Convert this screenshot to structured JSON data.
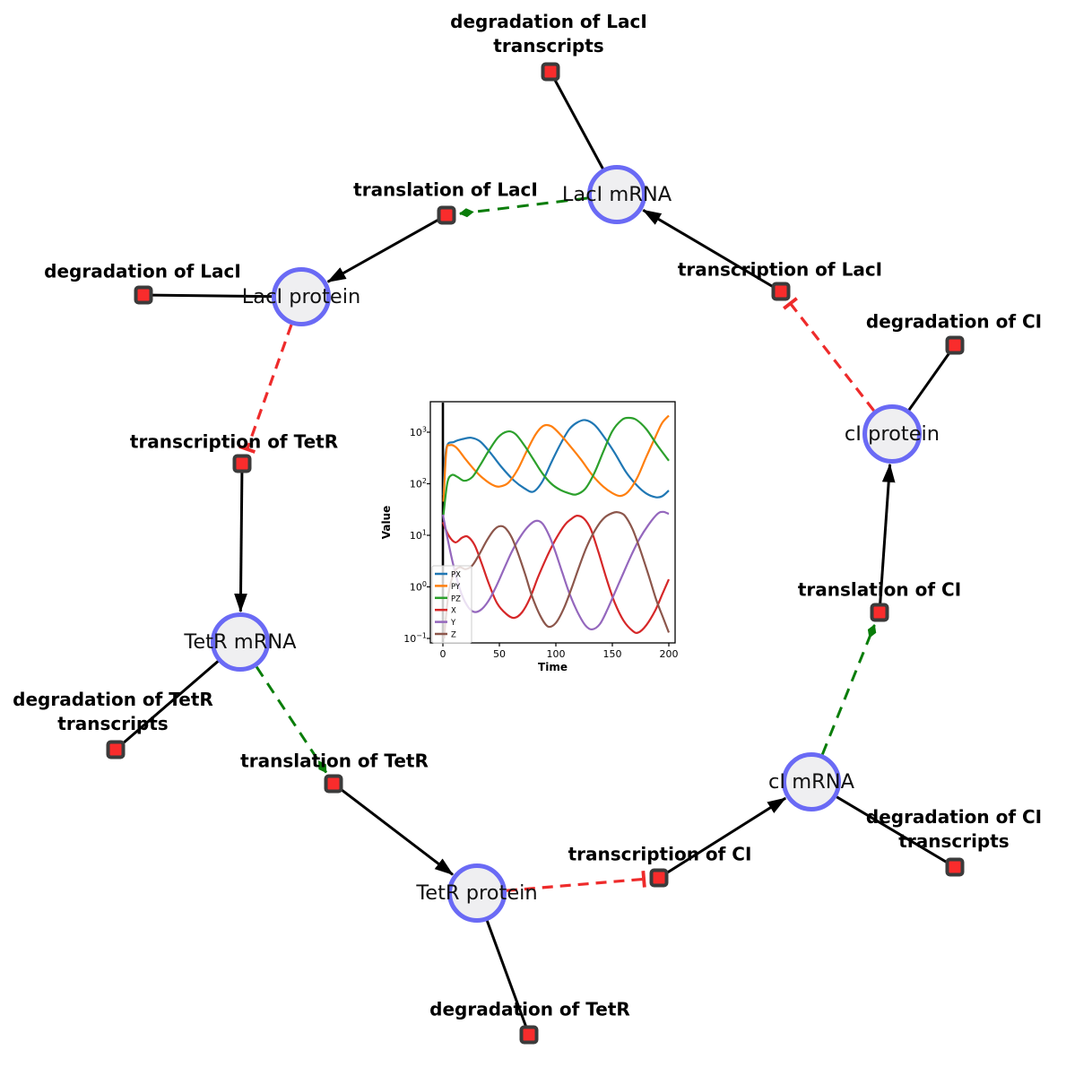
{
  "diagram": {
    "species": [
      {
        "id": "laci_mrna",
        "label": "LacI mRNA"
      },
      {
        "id": "laci_protein",
        "label": "LacI protein"
      },
      {
        "id": "tetr_mrna",
        "label": "TetR mRNA"
      },
      {
        "id": "tetr_protein",
        "label": "TetR protein"
      },
      {
        "id": "ci_mrna",
        "label": "cI mRNA"
      },
      {
        "id": "ci_protein",
        "label": "cI protein"
      }
    ],
    "reactions": [
      {
        "id": "deg_laci_tx",
        "label": "degradation of LacI\ntranscripts"
      },
      {
        "id": "transl_laci",
        "label": "translation of LacI"
      },
      {
        "id": "txn_laci",
        "label": "transcription of LacI"
      },
      {
        "id": "deg_laci",
        "label": "degradation of LacI"
      },
      {
        "id": "deg_ci",
        "label": "degradation of CI"
      },
      {
        "id": "txn_tetr",
        "label": "transcription of TetR"
      },
      {
        "id": "transl_ci",
        "label": "translation of CI"
      },
      {
        "id": "deg_tetr_tx",
        "label": "degradation of TetR\ntranscripts"
      },
      {
        "id": "transl_tetr",
        "label": "translation of TetR"
      },
      {
        "id": "deg_ci_tx",
        "label": "degradation of CI\ntranscripts"
      },
      {
        "id": "txn_ci",
        "label": "transcription of CI"
      },
      {
        "id": "deg_tetr",
        "label": "degradation of TetR"
      }
    ],
    "edges": [
      {
        "from": "laci_mrna",
        "to": "deg_laci_tx",
        "style": "plain"
      },
      {
        "from": "laci_mrna",
        "to": "transl_laci",
        "style": "modifier"
      },
      {
        "from": "txn_laci",
        "to": "laci_mrna",
        "style": "product"
      },
      {
        "from": "ci_protein",
        "to": "txn_laci",
        "style": "inhibition"
      },
      {
        "from": "transl_laci",
        "to": "laci_protein",
        "style": "product"
      },
      {
        "from": "laci_protein",
        "to": "deg_laci",
        "style": "plain"
      },
      {
        "from": "laci_protein",
        "to": "txn_tetr",
        "style": "inhibition"
      },
      {
        "from": "txn_tetr",
        "to": "tetr_mrna",
        "style": "product"
      },
      {
        "from": "tetr_mrna",
        "to": "deg_tetr_tx",
        "style": "plain"
      },
      {
        "from": "tetr_mrna",
        "to": "transl_tetr",
        "style": "modifier"
      },
      {
        "from": "transl_tetr",
        "to": "tetr_protein",
        "style": "product"
      },
      {
        "from": "tetr_protein",
        "to": "deg_tetr",
        "style": "plain"
      },
      {
        "from": "tetr_protein",
        "to": "txn_ci",
        "style": "inhibition"
      },
      {
        "from": "txn_ci",
        "to": "ci_mrna",
        "style": "product"
      },
      {
        "from": "ci_mrna",
        "to": "deg_ci_tx",
        "style": "plain"
      },
      {
        "from": "ci_mrna",
        "to": "transl_ci",
        "style": "modifier"
      },
      {
        "from": "transl_ci",
        "to": "ci_protein",
        "style": "product"
      },
      {
        "from": "ci_protein",
        "to": "deg_ci",
        "style": "plain"
      }
    ],
    "colors": {
      "background": "#ffffff",
      "species_fill": "#efeff1",
      "species_border": "#6a6af5",
      "reaction_fill": "#f92c2c",
      "reaction_border": "#3b3b3b",
      "edge": "#000000",
      "modifier_edge": "#0a7d0a",
      "inhibition_edge": "#ee2b2b",
      "text": "#000000"
    }
  },
  "chart_data": {
    "type": "line",
    "title": "",
    "xlabel": "Time",
    "ylabel": "Value",
    "y_scale": "log",
    "y_base": "10",
    "x_ticks": [
      [
        0,
        "0"
      ],
      [
        50,
        "50"
      ],
      [
        100,
        "100"
      ],
      [
        150,
        "150"
      ],
      [
        200,
        "200"
      ]
    ],
    "y_ticks": [
      [
        3,
        "3"
      ],
      [
        2,
        "2"
      ],
      [
        1,
        "1"
      ],
      [
        0,
        "0"
      ],
      [
        -1,
        "−1"
      ]
    ],
    "xlim": [
      -11,
      205.5
    ],
    "ylim_log10": [
      -1.09,
      3.59
    ],
    "grid": false,
    "legend_position": "lower left",
    "vline_x": 0,
    "series": [
      {
        "name": "PX",
        "color": "#1f77b4",
        "points": [
          [
            0.5,
            60
          ],
          [
            3,
            480
          ],
          [
            10,
            650
          ],
          [
            18,
            740
          ],
          [
            25,
            780
          ],
          [
            33,
            660
          ],
          [
            42,
            400
          ],
          [
            52,
            210
          ],
          [
            63,
            115
          ],
          [
            72,
            82
          ],
          [
            80,
            70
          ],
          [
            88,
            110
          ],
          [
            96,
            260
          ],
          [
            105,
            640
          ],
          [
            112,
            1150
          ],
          [
            119,
            1550
          ],
          [
            126,
            1720
          ],
          [
            134,
            1400
          ],
          [
            142,
            850
          ],
          [
            152,
            400
          ],
          [
            162,
            170
          ],
          [
            172,
            92
          ],
          [
            180,
            65
          ],
          [
            188,
            55
          ],
          [
            194,
            57
          ],
          [
            200,
            74
          ]
        ]
      },
      {
        "name": "PY",
        "color": "#ff7f0e",
        "points": [
          [
            0.5,
            45
          ],
          [
            3,
            420
          ],
          [
            6,
            560
          ],
          [
            12,
            500
          ],
          [
            20,
            300
          ],
          [
            28,
            185
          ],
          [
            36,
            125
          ],
          [
            44,
            95
          ],
          [
            50,
            88
          ],
          [
            58,
            105
          ],
          [
            66,
            185
          ],
          [
            74,
            420
          ],
          [
            82,
            900
          ],
          [
            89,
            1330
          ],
          [
            96,
            1300
          ],
          [
            104,
            900
          ],
          [
            112,
            560
          ],
          [
            122,
            300
          ],
          [
            132,
            150
          ],
          [
            142,
            88
          ],
          [
            150,
            66
          ],
          [
            157,
            58
          ],
          [
            164,
            70
          ],
          [
            172,
            130
          ],
          [
            180,
            330
          ],
          [
            188,
            800
          ],
          [
            194,
            1500
          ],
          [
            200,
            2100
          ]
        ]
      },
      {
        "name": "PZ",
        "color": "#2ca02c",
        "points": [
          [
            0.5,
            25
          ],
          [
            4,
            105
          ],
          [
            8,
            148
          ],
          [
            13,
            135
          ],
          [
            19,
            114
          ],
          [
            26,
            135
          ],
          [
            33,
            230
          ],
          [
            41,
            450
          ],
          [
            49,
            800
          ],
          [
            57,
            1030
          ],
          [
            64,
            930
          ],
          [
            72,
            560
          ],
          [
            80,
            300
          ],
          [
            88,
            160
          ],
          [
            96,
            100
          ],
          [
            104,
            76
          ],
          [
            112,
            65
          ],
          [
            118,
            62
          ],
          [
            126,
            80
          ],
          [
            134,
            160
          ],
          [
            142,
            420
          ],
          [
            150,
            1050
          ],
          [
            158,
            1700
          ],
          [
            164,
            1900
          ],
          [
            171,
            1750
          ],
          [
            180,
            1150
          ],
          [
            190,
            550
          ],
          [
            200,
            280
          ]
        ]
      },
      {
        "name": "X",
        "color": "#d62728",
        "points": [
          [
            0,
            18
          ],
          [
            5,
            10
          ],
          [
            11,
            7.3
          ],
          [
            17,
            9
          ],
          [
            22,
            9.4
          ],
          [
            28,
            6.5
          ],
          [
            34,
            3
          ],
          [
            41,
            1.1
          ],
          [
            48,
            0.48
          ],
          [
            56,
            0.3
          ],
          [
            63,
            0.25
          ],
          [
            70,
            0.32
          ],
          [
            77,
            0.6
          ],
          [
            84,
            1.5
          ],
          [
            92,
            3.8
          ],
          [
            100,
            8.5
          ],
          [
            108,
            16
          ],
          [
            114,
            21
          ],
          [
            119,
            24
          ],
          [
            125,
            21
          ],
          [
            131,
            13
          ],
          [
            138,
            4.5
          ],
          [
            145,
            1.4
          ],
          [
            152,
            0.5
          ],
          [
            160,
            0.22
          ],
          [
            168,
            0.14
          ],
          [
            173,
            0.13
          ],
          [
            180,
            0.18
          ],
          [
            188,
            0.35
          ],
          [
            194,
            0.7
          ],
          [
            200,
            1.4
          ]
        ]
      },
      {
        "name": "Y",
        "color": "#9467bd",
        "points": [
          [
            0,
            25
          ],
          [
            4,
            9
          ],
          [
            9,
            2.8
          ],
          [
            15,
            0.9
          ],
          [
            21,
            0.45
          ],
          [
            27,
            0.33
          ],
          [
            33,
            0.35
          ],
          [
            40,
            0.52
          ],
          [
            47,
            1
          ],
          [
            54,
            2.2
          ],
          [
            61,
            4.8
          ],
          [
            68,
            9
          ],
          [
            75,
            14.5
          ],
          [
            82,
            19
          ],
          [
            88,
            17
          ],
          [
            94,
            10
          ],
          [
            100,
            4.5
          ],
          [
            106,
            1.8
          ],
          [
            112,
            0.75
          ],
          [
            119,
            0.33
          ],
          [
            126,
            0.18
          ],
          [
            132,
            0.15
          ],
          [
            139,
            0.19
          ],
          [
            146,
            0.38
          ],
          [
            153,
            0.85
          ],
          [
            160,
            1.9
          ],
          [
            167,
            4.2
          ],
          [
            174,
            8.5
          ],
          [
            182,
            16
          ],
          [
            190,
            26
          ],
          [
            195,
            28.5
          ],
          [
            200,
            26
          ]
        ]
      },
      {
        "name": "Z",
        "color": "#8c564b",
        "points": [
          [
            1,
            0.1
          ],
          [
            5,
            0.75
          ],
          [
            10,
            1.9
          ],
          [
            15,
            2.4
          ],
          [
            20,
            2.2
          ],
          [
            26,
            2.6
          ],
          [
            32,
            4.2
          ],
          [
            39,
            8
          ],
          [
            45,
            12.5
          ],
          [
            50,
            15
          ],
          [
            55,
            14
          ],
          [
            61,
            9
          ],
          [
            67,
            4.2
          ],
          [
            73,
            1.7
          ],
          [
            79,
            0.65
          ],
          [
            86,
            0.28
          ],
          [
            93,
            0.17
          ],
          [
            100,
            0.2
          ],
          [
            107,
            0.38
          ],
          [
            114,
            0.95
          ],
          [
            121,
            2.6
          ],
          [
            128,
            6.5
          ],
          [
            136,
            14
          ],
          [
            143,
            22
          ],
          [
            150,
            27
          ],
          [
            155,
            28
          ],
          [
            161,
            24
          ],
          [
            168,
            13
          ],
          [
            175,
            5
          ],
          [
            182,
            1.7
          ],
          [
            189,
            0.55
          ],
          [
            195,
            0.25
          ],
          [
            200,
            0.13
          ]
        ]
      }
    ]
  }
}
